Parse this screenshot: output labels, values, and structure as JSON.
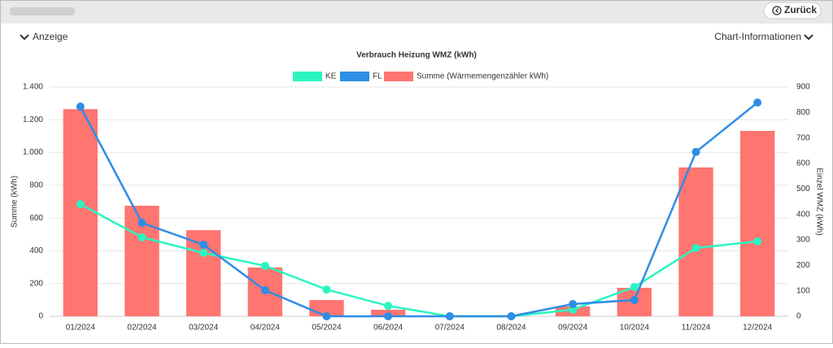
{
  "ui": {
    "back_button": "Zurück",
    "display_toggle": "Anzeige",
    "chart_info": "Chart-Informationen"
  },
  "chart_data": {
    "type": "bar-line",
    "title": "Verbrauch Heizung WMZ (kWh)",
    "y_label": "Summe (kWh)",
    "y2_label": "Einzel WMZ (kWh)",
    "categories": [
      "01/2024",
      "02/2024",
      "03/2024",
      "04/2024",
      "05/2024",
      "06/2024",
      "07/2024",
      "08/2024",
      "09/2024",
      "10/2024",
      "11/2024",
      "12/2024"
    ],
    "series": [
      {
        "name": "KE",
        "color": "#2af5c0",
        "type": "line",
        "axis": "y2",
        "values": [
          440,
          310,
          249,
          198,
          105,
          41,
          0,
          0,
          26,
          115,
          268,
          294
        ]
      },
      {
        "name": "FL",
        "color": "#2e8de6",
        "type": "line",
        "axis": "y2",
        "values": [
          823,
          367,
          281,
          102,
          0,
          0,
          0,
          0,
          48,
          64,
          645,
          839
        ]
      },
      {
        "name": "Summe (Wärmemengenzähler kWh)",
        "color": "#ff7570",
        "type": "bar",
        "values": [
          1265,
          675,
          526,
          298,
          99,
          40,
          0,
          0,
          60,
          174,
          909,
          1132
        ]
      }
    ],
    "ylim": [
      0,
      1400
    ],
    "yticks": [
      0,
      200,
      400,
      600,
      800,
      {
        "value": 1000,
        "label": "1.000"
      },
      {
        "value": 1200,
        "label": "1.200"
      },
      {
        "value": 1400,
        "label": "1.400"
      }
    ],
    "y2lim": [
      0,
      900
    ],
    "y2ticks": [
      0,
      100,
      200,
      300,
      400,
      500,
      600,
      700,
      800,
      900
    ],
    "grid": true,
    "legend": "top"
  }
}
